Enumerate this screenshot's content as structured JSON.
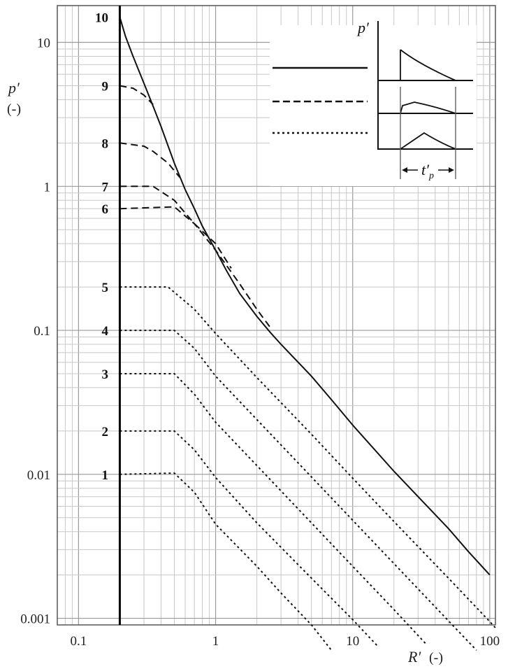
{
  "chart_data": {
    "type": "line",
    "xscale": "log",
    "yscale": "log",
    "xlim": [
      0.07,
      110
    ],
    "ylim": [
      0.0009,
      18
    ],
    "grid": true,
    "x_ticks": [
      {
        "value": 0.1,
        "label": "0.1"
      },
      {
        "value": 1,
        "label": "1"
      },
      {
        "value": 10,
        "label": "10"
      },
      {
        "value": 100,
        "label": "100"
      }
    ],
    "y_ticks": [
      {
        "value": 0.001,
        "label": "0.001"
      },
      {
        "value": 0.01,
        "label": "0.01"
      },
      {
        "value": 0.1,
        "label": "0.1"
      },
      {
        "value": 1,
        "label": "1"
      },
      {
        "value": 10,
        "label": "10"
      }
    ],
    "xlabel": "R′",
    "xlabel_unit": "(-)",
    "ylabel": "p′",
    "ylabel_unit": "(-)",
    "vertical_line_x": 0.2,
    "envelope": {
      "style": "solid",
      "x": [
        0.2,
        0.22,
        0.25,
        0.3,
        0.35,
        0.4,
        0.5,
        0.6,
        0.7,
        0.8,
        1.0,
        1.2,
        1.5,
        2.0,
        2.5,
        3.0,
        4.0,
        5.0,
        7.0,
        10,
        20,
        30,
        50,
        70,
        100
      ],
      "y": [
        15,
        11,
        8,
        5.2,
        3.6,
        2.6,
        1.45,
        0.95,
        0.7,
        0.53,
        0.36,
        0.26,
        0.18,
        0.125,
        0.097,
        0.08,
        0.06,
        0.048,
        0.033,
        0.022,
        0.0105,
        0.007,
        0.0042,
        0.0029,
        0.002
      ]
    },
    "series": [
      {
        "label": "1",
        "style": "dotted",
        "plateau": 0.01,
        "x": [
          0.2,
          0.5,
          0.7,
          1.0,
          2.0,
          3.0,
          5.0,
          7.0
        ],
        "y": [
          0.01,
          0.0102,
          0.0075,
          0.0045,
          0.0023,
          0.0015,
          0.0009,
          0.0006
        ]
      },
      {
        "label": "2",
        "style": "dotted",
        "plateau": 0.02,
        "x": [
          0.2,
          0.5,
          0.7,
          1.0,
          2.0,
          5.0,
          10,
          15
        ],
        "y": [
          0.02,
          0.02,
          0.0148,
          0.0095,
          0.0046,
          0.0019,
          0.00098,
          0.00065
        ]
      },
      {
        "label": "3",
        "style": "dotted",
        "plateau": 0.05,
        "x": [
          0.2,
          0.5,
          0.7,
          1.0,
          2.0,
          5.0,
          10,
          20,
          35
        ],
        "y": [
          0.05,
          0.05,
          0.036,
          0.023,
          0.0115,
          0.0046,
          0.0023,
          0.00115,
          0.00065
        ]
      },
      {
        "label": "4",
        "style": "dotted",
        "plateau": 0.1,
        "x": [
          0.2,
          0.5,
          0.7,
          1.0,
          2.0,
          5.0,
          10,
          20,
          50,
          80
        ],
        "y": [
          0.1,
          0.1,
          0.075,
          0.048,
          0.024,
          0.0096,
          0.0048,
          0.0024,
          0.00096,
          0.0006
        ]
      },
      {
        "label": "5",
        "style": "dotted",
        "plateau": 0.2,
        "x": [
          0.2,
          0.45,
          0.7,
          1.0,
          2.0,
          5.0,
          10,
          20,
          50,
          100,
          110
        ],
        "y": [
          0.2,
          0.2,
          0.14,
          0.095,
          0.047,
          0.019,
          0.0094,
          0.0047,
          0.0019,
          0.00095,
          0.00086
        ]
      },
      {
        "label": "6",
        "style": "dashed",
        "plateau": 0.7,
        "x": [
          0.2,
          0.5,
          0.7,
          1.0,
          1.5,
          2.0,
          2.5
        ],
        "y": [
          0.7,
          0.72,
          0.55,
          0.36,
          0.21,
          0.14,
          0.105
        ]
      },
      {
        "label": "7",
        "style": "dashed",
        "plateau": 1.0,
        "x": [
          0.2,
          0.35,
          0.5,
          0.7,
          1.0,
          1.3
        ],
        "y": [
          1.0,
          1.0,
          0.8,
          0.55,
          0.4,
          0.27
        ]
      },
      {
        "label": "8",
        "style": "dashed",
        "plateau": 2.0,
        "x": [
          0.2,
          0.3,
          0.35,
          0.45,
          0.55
        ],
        "y": [
          2.0,
          1.9,
          1.75,
          1.45,
          1.15
        ]
      },
      {
        "label": "9",
        "style": "dashed",
        "plateau": 5.0,
        "x": [
          0.2,
          0.25,
          0.3,
          0.35
        ],
        "y": [
          5.0,
          4.8,
          4.3,
          3.7
        ]
      },
      {
        "label": "10",
        "style": "solid",
        "plateau": 15,
        "x": [
          0.2
        ],
        "y": [
          15
        ]
      }
    ],
    "inset": {
      "ylabel": "p′",
      "duration_label": "t′",
      "duration_subscript": "p"
    }
  }
}
